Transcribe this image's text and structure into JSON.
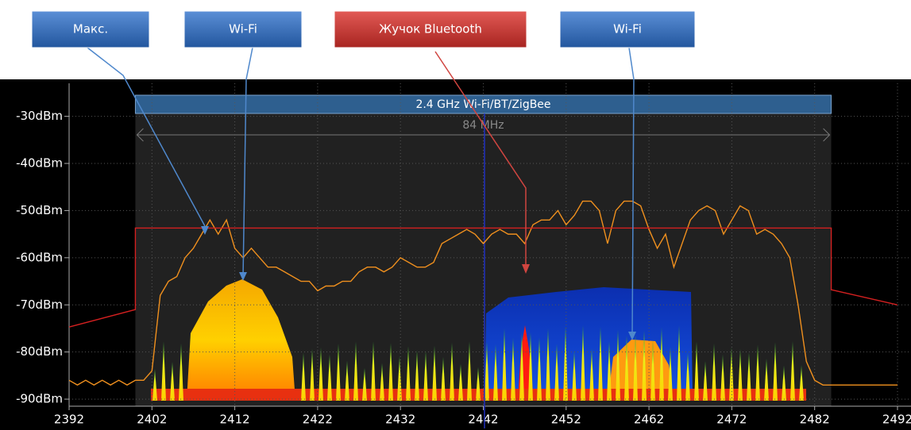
{
  "chart_data": {
    "type": "line",
    "xlim": [
      2392,
      2492
    ],
    "xticks": [
      2392,
      2402,
      2412,
      2422,
      2432,
      2442,
      2452,
      2462,
      2472,
      2482,
      2492
    ],
    "ylim": [
      -91.5,
      -23
    ],
    "yticks": [
      {
        "value": -30,
        "label": "-30dBm"
      },
      {
        "value": -40,
        "label": "-40dBm"
      },
      {
        "value": -50,
        "label": "-50dBm"
      },
      {
        "value": -60,
        "label": "-60dBm"
      },
      {
        "value": -70,
        "label": "-70dBm"
      },
      {
        "value": -80,
        "label": "-80dBm"
      },
      {
        "value": -90,
        "label": "-90dBm"
      }
    ],
    "grid": true,
    "band": {
      "label": "2.4 GHz Wi-Fi/BT/ZigBee",
      "width_label": "84 MHz",
      "start": 2400,
      "end": 2484,
      "color": "#2e5f8f"
    },
    "series": [
      {
        "color": "#f0901e",
        "x": [
          2392,
          2393,
          2394,
          2395,
          2396,
          2397,
          2398,
          2399,
          2400,
          2401,
          2402,
          2403,
          2404,
          2405,
          2406,
          2407,
          2408,
          2409,
          2410,
          2411,
          2412,
          2413,
          2414,
          2415,
          2416,
          2417,
          2418,
          2419,
          2420,
          2421,
          2422,
          2423,
          2424,
          2425,
          2426,
          2427,
          2428,
          2429,
          2430,
          2431,
          2432,
          2433,
          2434,
          2435,
          2436,
          2437,
          2438,
          2439,
          2440,
          2441,
          2442,
          2443,
          2444,
          2445,
          2446,
          2447,
          2448,
          2449,
          2450,
          2451,
          2452,
          2453,
          2454,
          2455,
          2456,
          2457,
          2458,
          2459,
          2460,
          2461,
          2462,
          2463,
          2464,
          2465,
          2466,
          2467,
          2468,
          2469,
          2470,
          2471,
          2472,
          2473,
          2474,
          2475,
          2476,
          2477,
          2478,
          2479,
          2480,
          2481,
          2482,
          2483,
          2484,
          2485,
          2486,
          2487,
          2488,
          2489,
          2490,
          2491,
          2492
        ],
        "values": [
          -86,
          -87,
          -86,
          -87,
          -86,
          -87,
          -86,
          -87,
          -86,
          -86,
          -84,
          -68,
          -65,
          -64,
          -60,
          -58,
          -55,
          -52,
          -55,
          -52,
          -58,
          -60,
          -58,
          -60,
          -62,
          -62,
          -63,
          -64,
          -65,
          -65,
          -67,
          -66,
          -66,
          -65,
          -65,
          -63,
          -62,
          -62,
          -63,
          -62,
          -60,
          -61,
          -62,
          -62,
          -61,
          -57,
          -56,
          -55,
          -54,
          -55,
          -57,
          -55,
          -54,
          -55,
          -55,
          -57,
          -53,
          -52,
          -52,
          -50,
          -53,
          -51,
          -48,
          -48,
          -50,
          -57,
          -50,
          -48,
          -48,
          -49,
          -54,
          -58,
          -55,
          -62,
          -57,
          -52,
          -50,
          -49,
          -50,
          -55,
          -52,
          -49,
          -50,
          -55,
          -54,
          -55,
          -57,
          -60,
          -70,
          -82,
          -86,
          -87,
          -87,
          -87,
          -87,
          -87,
          -87,
          -87,
          -87,
          -87,
          -87
        ]
      },
      {
        "color": "#d42020",
        "x": [
          2392,
          2400,
          2400,
          2484,
          2484,
          2492
        ],
        "values": [
          -74.7,
          -71,
          -53.7,
          -53.7,
          -66.8,
          -70
        ]
      }
    ],
    "annotations": [
      {
        "text": "Макс.",
        "color": "#2f6db5"
      },
      {
        "text": "Wi-Fi",
        "color": "#2f6db5"
      },
      {
        "text": "Жучок Bluetooth",
        "color": "#c0302e"
      },
      {
        "text": "Wi-Fi",
        "color": "#2f6db5"
      }
    ]
  }
}
